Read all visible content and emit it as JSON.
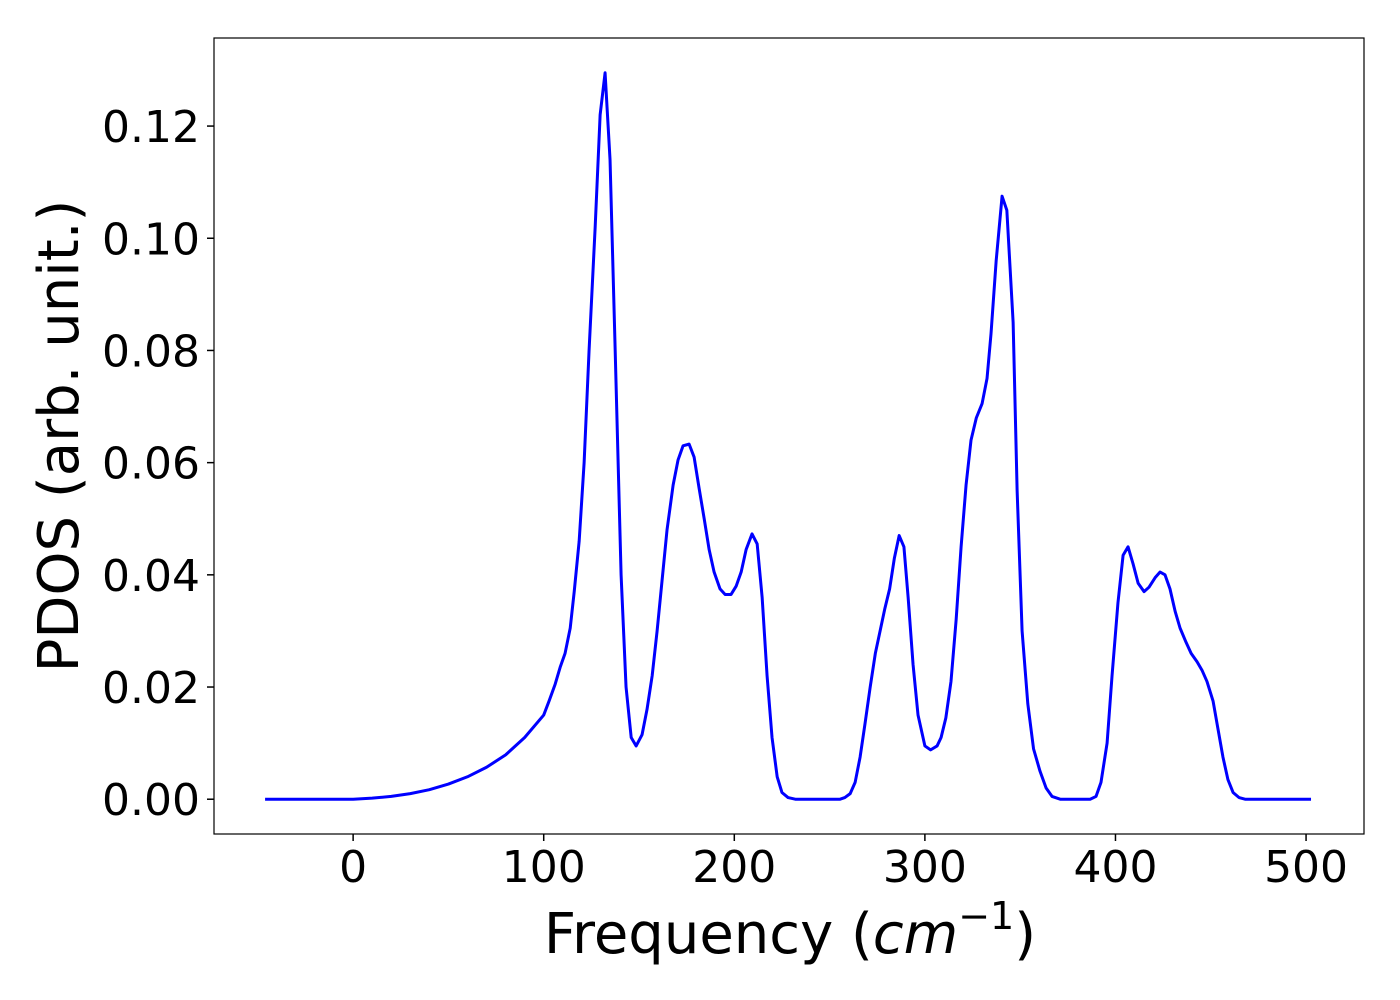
{
  "chart_data": {
    "type": "line",
    "y_label": "PDOS (arb. unit.)",
    "x_label": [
      "Frequency (",
      "cm",
      "−1",
      ")"
    ],
    "color": "#0000ff",
    "xlim": [
      -73,
      530.4
    ],
    "ylim": [
      -0.0062,
      0.1357
    ],
    "xticks": [
      0,
      100,
      200,
      300,
      400,
      500
    ],
    "yticks": [
      {
        "value": 0,
        "label": "0.00"
      },
      {
        "value": 0.02,
        "label": "0.02"
      },
      {
        "value": 0.04,
        "label": "0.04"
      },
      {
        "value": 0.06,
        "label": "0.06"
      },
      {
        "value": 0.08,
        "label": "0.08"
      },
      {
        "value": 0.1,
        "label": "0.10"
      },
      {
        "value": 0.12,
        "label": "0.12"
      }
    ],
    "grid": false,
    "x": [
      -46.2,
      -40,
      -30,
      -20,
      -10,
      0,
      10,
      20,
      30,
      40,
      50,
      60,
      70,
      80,
      90,
      100,
      102.8,
      106,
      108.6,
      111.2,
      113.9,
      116,
      118.6,
      121.2,
      123.8,
      127,
      129.6,
      132.2,
      134.8,
      137.5,
      140.6,
      143.2,
      145.9,
      148.5,
      151.6,
      154.2,
      156.9,
      159.5,
      162.1,
      164.7,
      167.9,
      170.5,
      173.1,
      176.3,
      178.9,
      181.5,
      184.2,
      186.8,
      189.4,
      192.5,
      195.2,
      198.3,
      201,
      203.6,
      206.2,
      209.3,
      212,
      214.6,
      217.2,
      219.8,
      222.5,
      225,
      228.2,
      232,
      240,
      250,
      255.5,
      258,
      260.8,
      263.4,
      266,
      268.6,
      271.3,
      274,
      276.5,
      279,
      281.5,
      284,
      286.5,
      289,
      291.2,
      293.8,
      296.4,
      300,
      303,
      306.4,
      308.5,
      311,
      313.7,
      316.4,
      319,
      321.6,
      324.2,
      327,
      330,
      332.6,
      334.7,
      337.4,
      340.5,
      343,
      346.3,
      348.4,
      351,
      354,
      357,
      360.4,
      363.6,
      366.7,
      371,
      380,
      386.7,
      389.8,
      392.4,
      395.6,
      398.2,
      401.3,
      404,
      406.6,
      409.2,
      411.9,
      415,
      417.6,
      420.8,
      423.4,
      426,
      428.6,
      431.3,
      433.9,
      437,
      439.7,
      442.8,
      445.4,
      448,
      451.2,
      453.8,
      456.4,
      459,
      461.7,
      464.8,
      468,
      480,
      490,
      502.6
    ],
    "values": [
      0,
      0,
      0,
      0,
      0,
      0,
      0.0002,
      0.0005,
      0.001,
      0.0017,
      0.0027,
      0.004,
      0.0057,
      0.0079,
      0.011,
      0.015,
      0.0175,
      0.0205,
      0.0235,
      0.026,
      0.0305,
      0.037,
      0.046,
      0.06,
      0.08,
      0.102,
      0.122,
      0.1295,
      0.114,
      0.08,
      0.04,
      0.02,
      0.011,
      0.0095,
      0.0115,
      0.016,
      0.022,
      0.03,
      0.039,
      0.048,
      0.056,
      0.0605,
      0.063,
      0.0633,
      0.061,
      0.0555,
      0.05,
      0.0445,
      0.0405,
      0.0375,
      0.0365,
      0.0365,
      0.038,
      0.0405,
      0.0445,
      0.0473,
      0.0455,
      0.036,
      0.022,
      0.011,
      0.004,
      0.0012,
      0.0003,
      0,
      0,
      0,
      0,
      0.0003,
      0.001,
      0.003,
      0.0075,
      0.0135,
      0.02,
      0.026,
      0.03,
      0.034,
      0.0375,
      0.043,
      0.047,
      0.045,
      0.036,
      0.024,
      0.015,
      0.0095,
      0.0088,
      0.0095,
      0.011,
      0.0145,
      0.021,
      0.032,
      0.045,
      0.056,
      0.064,
      0.068,
      0.0705,
      0.075,
      0.083,
      0.096,
      0.1075,
      0.105,
      0.085,
      0.055,
      0.03,
      0.017,
      0.009,
      0.005,
      0.002,
      0.0005,
      0,
      0,
      0,
      0.0005,
      0.003,
      0.01,
      0.022,
      0.035,
      0.0435,
      0.045,
      0.042,
      0.0385,
      0.037,
      0.0378,
      0.0395,
      0.0405,
      0.04,
      0.0375,
      0.0335,
      0.0305,
      0.028,
      0.026,
      0.0245,
      0.023,
      0.021,
      0.0175,
      0.0125,
      0.0075,
      0.0035,
      0.0012,
      0.0003,
      0,
      0,
      0,
      0
    ]
  }
}
